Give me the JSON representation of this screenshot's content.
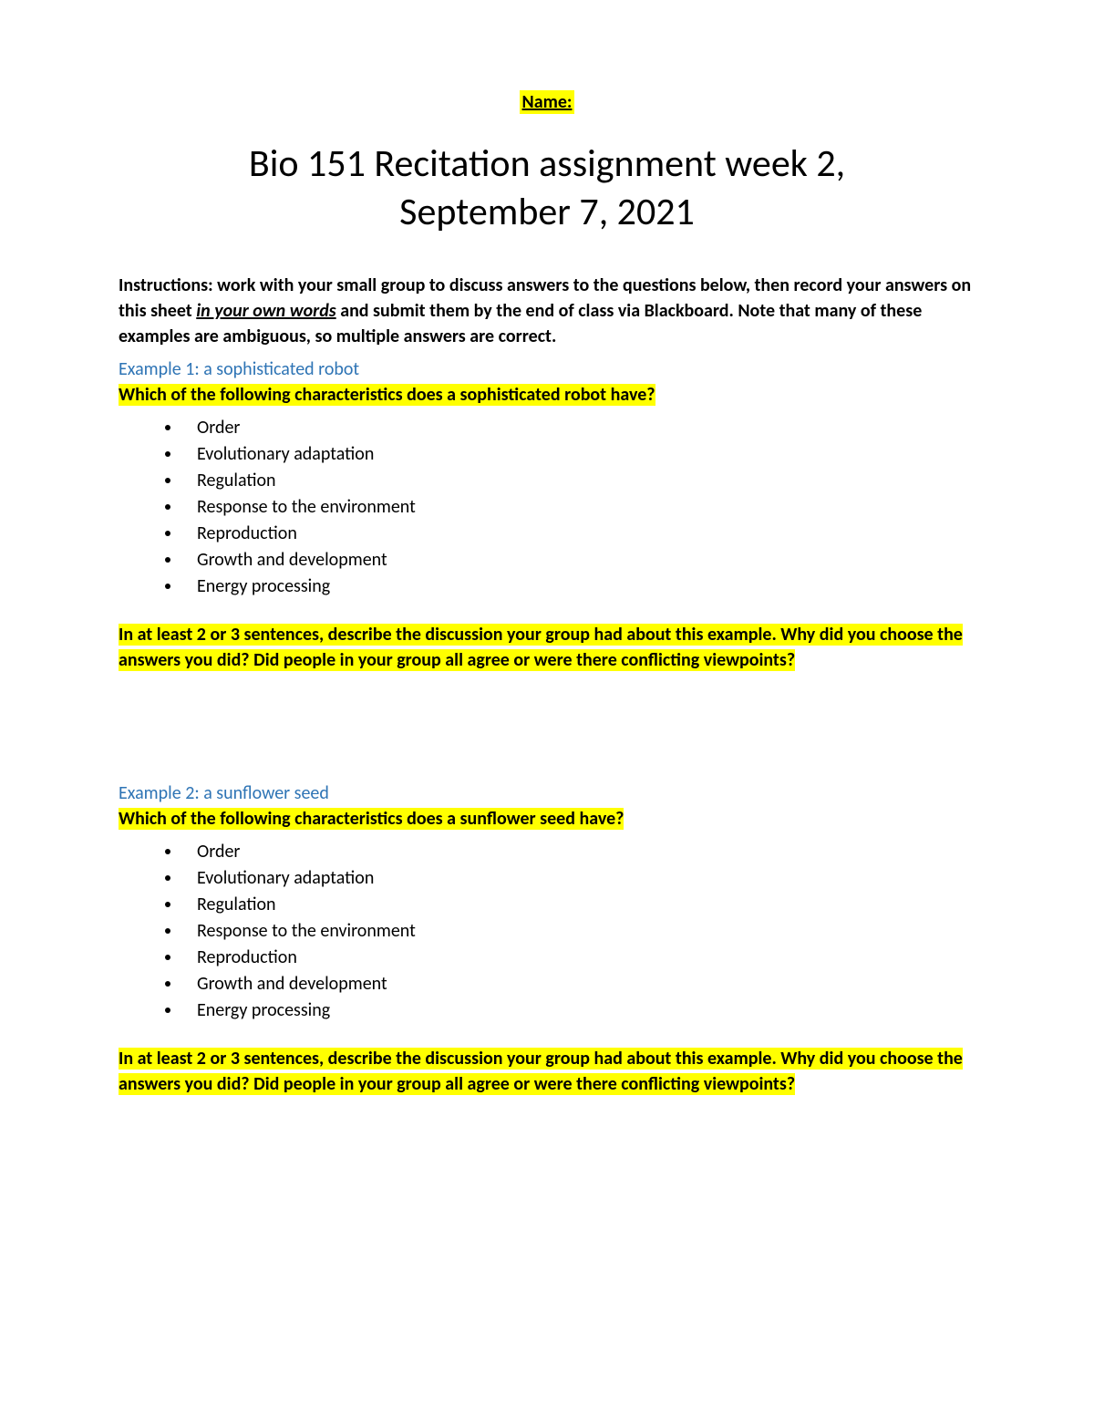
{
  "colors": {
    "highlight": "#ffff00",
    "heading_blue": "#2e74b5",
    "text": "#000000",
    "background": "#ffffff"
  },
  "typography": {
    "title_fontsize": 42,
    "title_weight": 300,
    "body_fontsize": 20,
    "font_family": "Calibri"
  },
  "name_label": "Name:",
  "title_line1": "Bio 151 Recitation assignment week 2,",
  "title_line2": "September 7, 2021",
  "instructions_pre": "Instructions: work with your small group to discuss answers to the questions below, then record your answers on this sheet ",
  "instructions_emph": "in your own words",
  "instructions_post": " and submit them by the end of class via Blackboard. Note that many of these examples are ambiguous, so multiple answers are correct.",
  "characteristics": [
    "Order",
    "Evolutionary adaptation",
    "Regulation",
    "Response to the environment",
    "Reproduction",
    "Growth and development",
    "Energy processing"
  ],
  "discussion_prompt": "In at least 2 or 3 sentences, describe the discussion your group had about this example. Why did you choose the answers you did? Did people in your group all agree or were there conflicting viewpoints?",
  "example1": {
    "heading": "Example 1: a sophisticated robot",
    "question": "Which of the following characteristics does a sophisticated robot have?"
  },
  "example2": {
    "heading": "Example 2: a sunflower seed",
    "question": "Which of the following characteristics does a sunflower seed have?"
  }
}
